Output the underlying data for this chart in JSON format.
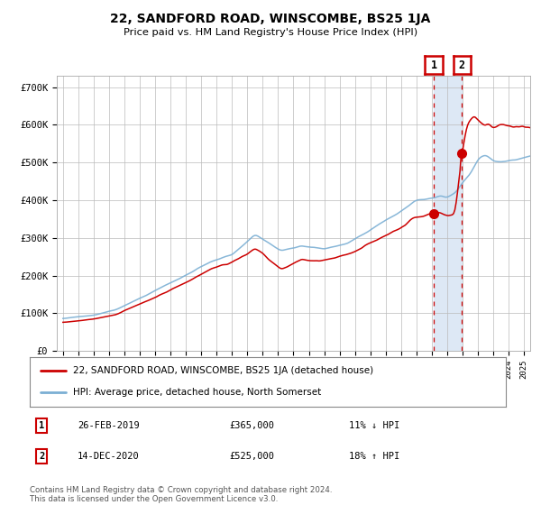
{
  "title": "22, SANDFORD ROAD, WINSCOMBE, BS25 1JA",
  "subtitle": "Price paid vs. HM Land Registry's House Price Index (HPI)",
  "ylabel_ticks": [
    "£0",
    "£100K",
    "£200K",
    "£300K",
    "£400K",
    "£500K",
    "£600K",
    "£700K"
  ],
  "ytick_vals": [
    0,
    100000,
    200000,
    300000,
    400000,
    500000,
    600000,
    700000
  ],
  "ylim": [
    0,
    730000
  ],
  "xlim_min": 1994.6,
  "xlim_max": 2025.4,
  "sale1_year": 2019.12,
  "sale1_price": 365000,
  "sale2_year": 2020.95,
  "sale2_price": 525000,
  "sale1_date": "26-FEB-2019",
  "sale2_date": "14-DEC-2020",
  "sale1_hpi_diff": "11% ↓ HPI",
  "sale2_hpi_diff": "18% ↑ HPI",
  "legend_red": "22, SANDFORD ROAD, WINSCOMBE, BS25 1JA (detached house)",
  "legend_blue": "HPI: Average price, detached house, North Somerset",
  "footnote": "Contains HM Land Registry data © Crown copyright and database right 2024.\nThis data is licensed under the Open Government Licence v3.0.",
  "red_color": "#cc0000",
  "blue_color": "#7bafd4",
  "highlight_color": "#dde8f5",
  "dashed_color": "#cc0000",
  "grid_color": "#bbbbbb"
}
